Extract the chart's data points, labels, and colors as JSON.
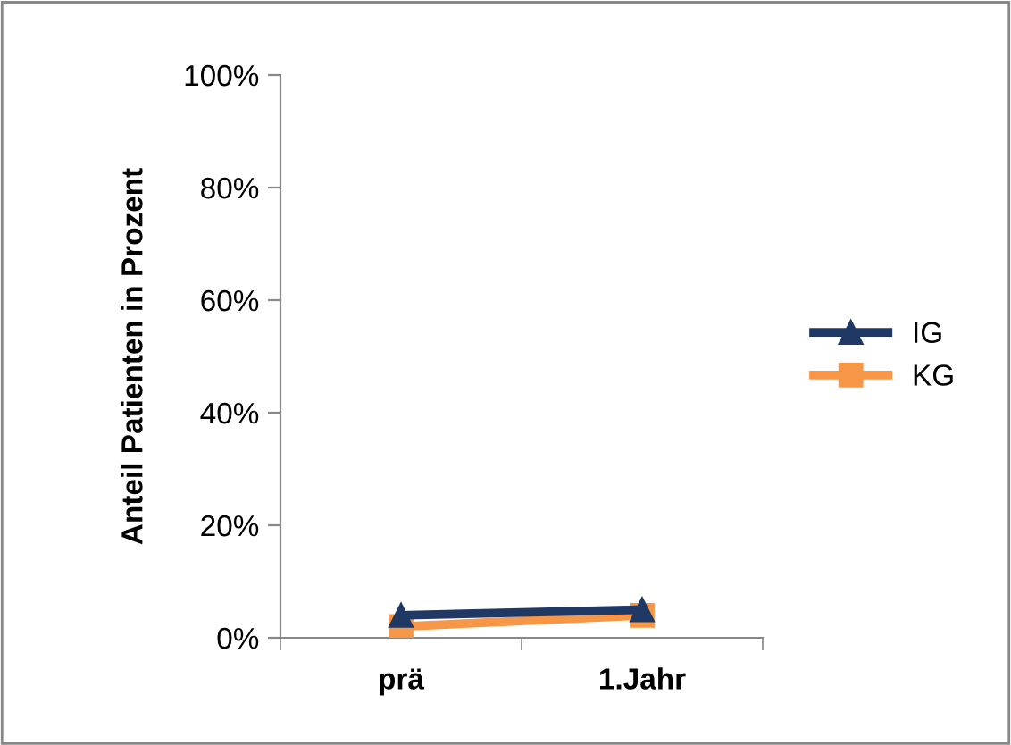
{
  "chart_data": {
    "type": "line",
    "ylabel": "Anteil Patienten in Prozent",
    "categories": [
      "prä",
      "1.Jahr"
    ],
    "series": [
      {
        "name": "IG",
        "color": "#1f3864",
        "values": [
          4,
          5
        ],
        "marker": "triangle"
      },
      {
        "name": "KG",
        "color": "#f79646",
        "values": [
          2,
          4
        ],
        "marker": "square"
      }
    ],
    "ylim": [
      0,
      100
    ],
    "yticks": [
      {
        "value": 0,
        "label": "0%"
      },
      {
        "value": 20,
        "label": "20%"
      },
      {
        "value": 40,
        "label": "40%"
      },
      {
        "value": 60,
        "label": "60%"
      },
      {
        "value": 80,
        "label": "80%"
      },
      {
        "value": 100,
        "label": "100%"
      }
    ],
    "grid": false,
    "legend": "right"
  }
}
